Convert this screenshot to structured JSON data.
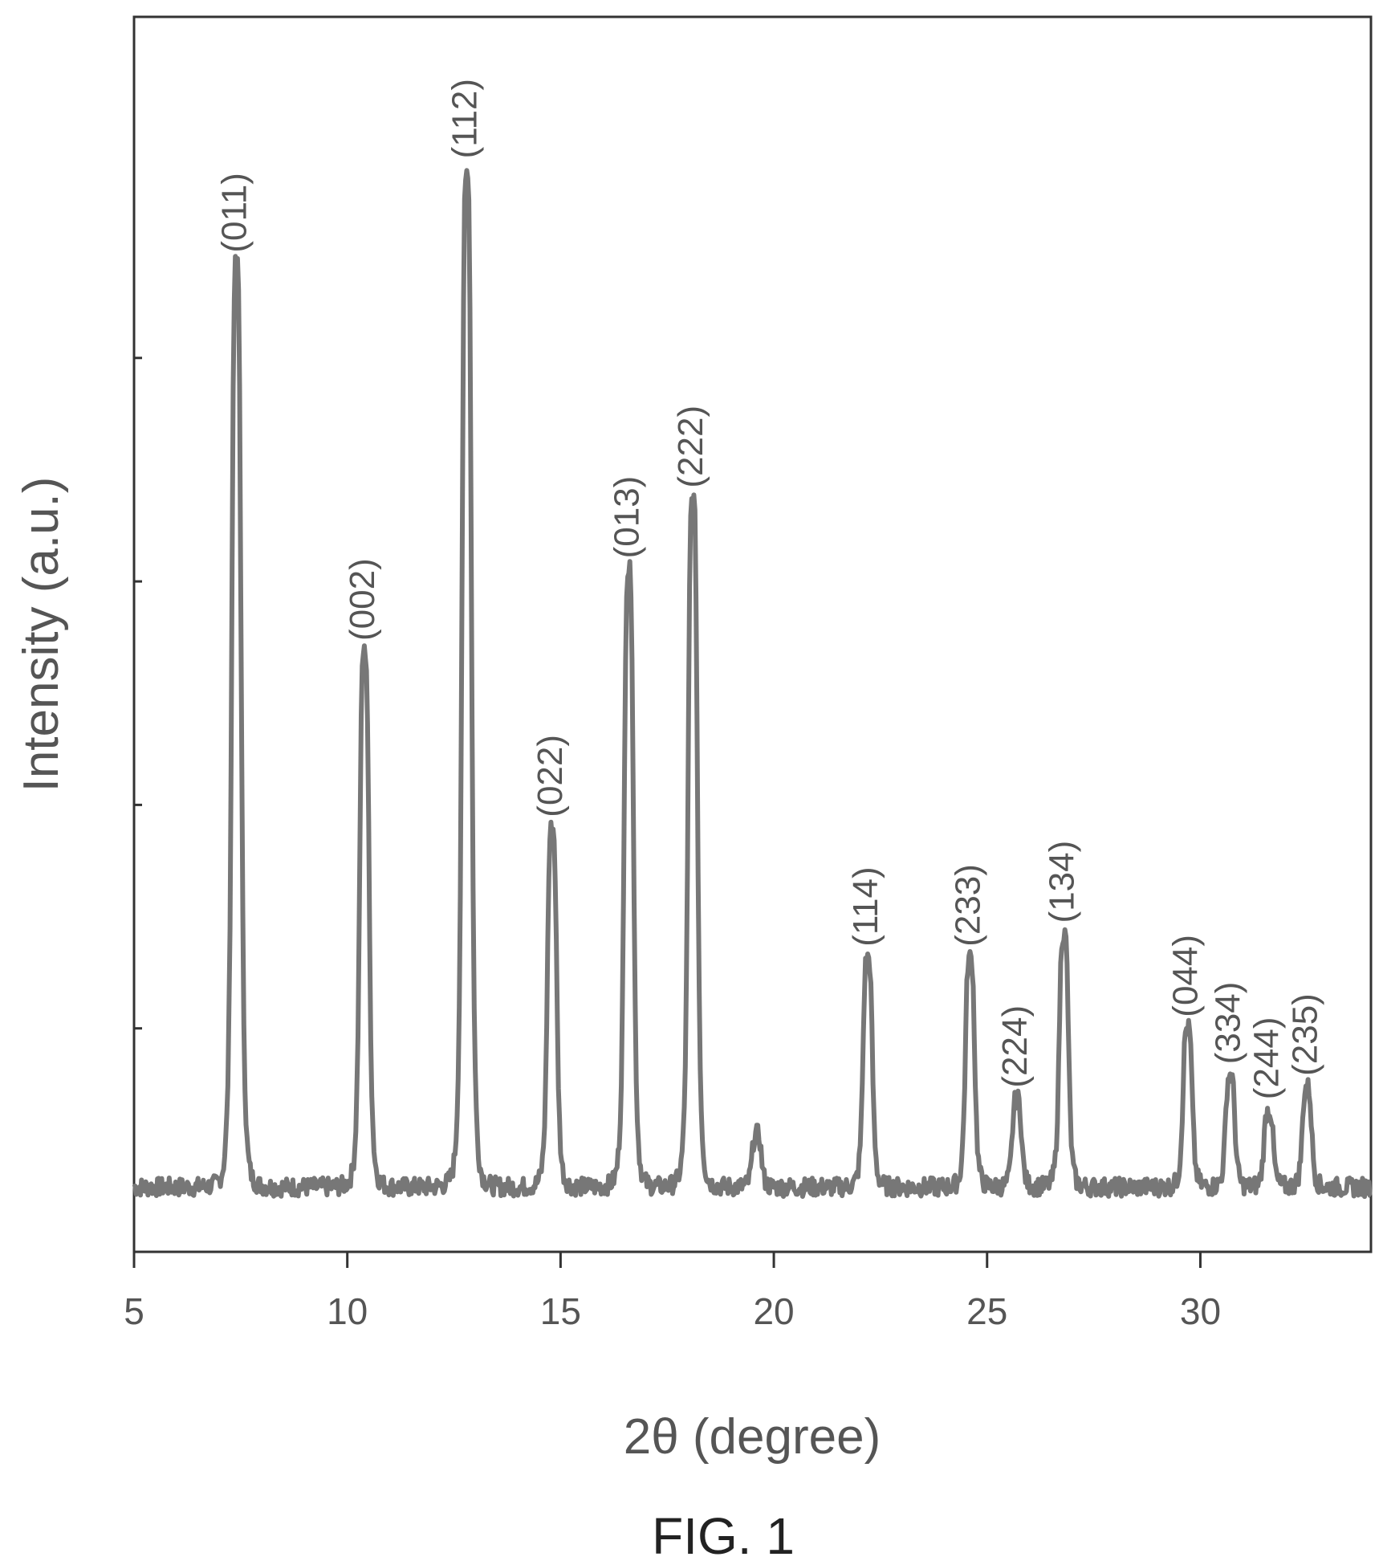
{
  "chart_data": {
    "type": "line",
    "title": "",
    "xlabel": "2θ (degree)",
    "ylabel": "Intensity (a.u.)",
    "xlim": [
      5,
      34
    ],
    "ylim": [
      0,
      105
    ],
    "x_ticks": [
      "5",
      "10",
      "15",
      "20",
      "25",
      "30"
    ],
    "x_tick_values": [
      5,
      10,
      15,
      20,
      25,
      30
    ],
    "y_tick_labels_shown": false,
    "y_minor_ticks": [
      19,
      38,
      57,
      76
    ],
    "grid": false,
    "legend": "none",
    "line_color": "#777777",
    "baseline": 5.5,
    "peaks": [
      {
        "label": "(011)",
        "x": 7.4,
        "y": 84
      },
      {
        "label": "(002)",
        "x": 10.4,
        "y": 51
      },
      {
        "label": "(112)",
        "x": 12.8,
        "y": 92
      },
      {
        "label": "(022)",
        "x": 14.8,
        "y": 36
      },
      {
        "label": "(013)",
        "x": 16.6,
        "y": 58
      },
      {
        "label": "(222)",
        "x": 18.1,
        "y": 64
      },
      {
        "label": "",
        "x": 19.6,
        "y": 10
      },
      {
        "label": "(114)",
        "x": 22.2,
        "y": 25
      },
      {
        "label": "(233)",
        "x": 24.6,
        "y": 25
      },
      {
        "label": "(224)",
        "x": 25.7,
        "y": 13
      },
      {
        "label": "(134)",
        "x": 26.8,
        "y": 27
      },
      {
        "label": "(044)",
        "x": 29.7,
        "y": 19
      },
      {
        "label": "(334)",
        "x": 30.7,
        "y": 15
      },
      {
        "label": "(244)",
        "x": 31.6,
        "y": 12
      },
      {
        "label": "(235)",
        "x": 32.5,
        "y": 14
      }
    ]
  },
  "caption": "FIG. 1"
}
